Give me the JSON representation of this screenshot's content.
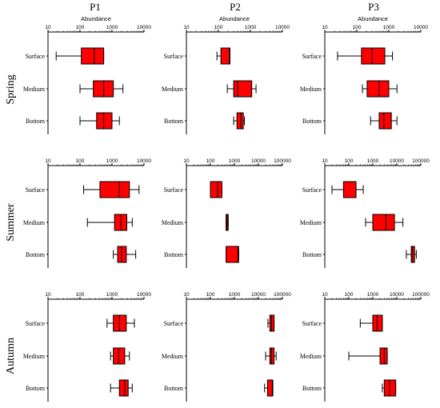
{
  "column_titles": [
    "P1",
    "P2",
    "P3"
  ],
  "row_titles": [
    "Spring",
    "Summer",
    "Autumn"
  ],
  "colors": {
    "box_fill": "#ff0000",
    "box_stroke": "#000000",
    "axis": "#000000"
  },
  "chart_data": [
    {
      "type": "box",
      "row": "Spring",
      "column": "P1",
      "xlabel": "Abundance",
      "xscale": "log",
      "xlim": [
        10,
        10000
      ],
      "xticks": [
        "10",
        "100",
        "1000",
        "10000"
      ],
      "categories": [
        "Surface",
        "Medium",
        "Bottom"
      ],
      "boxes": [
        {
          "min": 18,
          "q1": 110,
          "median": 280,
          "q3": 550,
          "max": 550
        },
        {
          "min": 100,
          "q1": 260,
          "median": 550,
          "q3": 1100,
          "max": 2200
        },
        {
          "min": 100,
          "q1": 330,
          "median": 550,
          "q3": 1000,
          "max": 1700
        }
      ]
    },
    {
      "type": "box",
      "row": "Spring",
      "column": "P2",
      "xlabel": "Abundance",
      "xscale": "log",
      "xlim": [
        10,
        10000
      ],
      "xticks": [
        "10",
        "100",
        "1000",
        "10000"
      ],
      "categories": [
        "Surface",
        "Medium",
        "Bottom"
      ],
      "boxes": [
        {
          "min": 90,
          "q1": 120,
          "median": 220,
          "q3": 230,
          "max": 230
        },
        {
          "min": 190,
          "q1": 300,
          "median": 400,
          "q3": 1100,
          "max": 1500
        },
        {
          "min": 300,
          "q1": 380,
          "median": 500,
          "q3": 600,
          "max": 650
        }
      ]
    },
    {
      "type": "box",
      "row": "Spring",
      "column": "P3",
      "xlabel": "Abundance",
      "xscale": "log",
      "xlim": [
        10,
        10000
      ],
      "xticks": [
        "10",
        "100",
        "1000",
        "10000"
      ],
      "categories": [
        "Surface",
        "Medium",
        "Bottom"
      ],
      "boxes": [
        {
          "min": 25,
          "q1": 140,
          "median": 300,
          "q3": 750,
          "max": 1300
        },
        {
          "min": 150,
          "q1": 210,
          "median": 500,
          "q3": 1000,
          "max": 1800
        },
        {
          "min": 270,
          "q1": 500,
          "median": 700,
          "q3": 1200,
          "max": 1800
        }
      ]
    },
    {
      "type": "box",
      "row": "Summer",
      "column": "P1",
      "xlabel": "",
      "xscale": "log",
      "xlim": [
        10,
        10000
      ],
      "xticks": [
        "10",
        "100",
        "1000",
        "10000"
      ],
      "categories": [
        "Surface",
        "Medium",
        "Bottom"
      ],
      "boxes": [
        {
          "min": 130,
          "q1": 420,
          "median": 1700,
          "q3": 3500,
          "max": 7000
        },
        {
          "min": 170,
          "q1": 1200,
          "median": 1900,
          "q3": 2900,
          "max": 4300
        },
        {
          "min": 1100,
          "q1": 1500,
          "median": 2000,
          "q3": 2800,
          "max": 5500
        }
      ]
    },
    {
      "type": "box",
      "row": "Summer",
      "column": "P2",
      "xlabel": "",
      "xscale": "log",
      "xlim": [
        10,
        100000
      ],
      "xticks": [
        "10",
        "100",
        "1000",
        "10000",
        "100000"
      ],
      "categories": [
        "Surface",
        "Medium",
        "Bottom"
      ],
      "boxes": [
        {
          "min": 100,
          "q1": 100,
          "median": 200,
          "q3": 300,
          "max": 300
        },
        {
          "min": 450,
          "q1": 450,
          "median": 500,
          "q3": 550,
          "max": 550
        },
        {
          "min": 450,
          "q1": 450,
          "median": 1400,
          "q3": 1500,
          "max": 1500
        }
      ]
    },
    {
      "type": "box",
      "row": "Summer",
      "column": "P3",
      "xlabel": "",
      "xscale": "log",
      "xlim": [
        10,
        100000
      ],
      "xticks": [
        "10",
        "100",
        "1000",
        "10000",
        "100000"
      ],
      "categories": [
        "Surface",
        "Medium",
        "Bottom"
      ],
      "boxes": [
        {
          "min": 20,
          "q1": 60,
          "median": 200,
          "q3": 200,
          "max": 400
        },
        {
          "min": 500,
          "q1": 1000,
          "median": 3500,
          "q3": 8000,
          "max": 18000
        },
        {
          "min": 25000,
          "q1": 40000,
          "median": 45000,
          "q3": 55000,
          "max": 65000
        }
      ]
    },
    {
      "type": "box",
      "row": "Autumn",
      "column": "P1",
      "xlabel": "",
      "xscale": "log",
      "xlim": [
        10,
        10000
      ],
      "xticks": [
        "10",
        "100",
        "1000",
        "10000"
      ],
      "categories": [
        "Surface",
        "Medium",
        "Bottom"
      ],
      "boxes": [
        {
          "min": 700,
          "q1": 1100,
          "median": 1700,
          "q3": 2800,
          "max": 5000
        },
        {
          "min": 900,
          "q1": 1100,
          "median": 1600,
          "q3": 2500,
          "max": 3500
        },
        {
          "min": 900,
          "q1": 1700,
          "median": 2500,
          "q3": 3200,
          "max": 4300
        }
      ]
    },
    {
      "type": "box",
      "row": "Autumn",
      "column": "P2",
      "xlabel": "",
      "xscale": "log",
      "xlim": [
        10,
        100000
      ],
      "xticks": [
        "10",
        "100",
        "1000",
        "10000",
        "100000"
      ],
      "categories": [
        "Surface",
        "Medium",
        "Bottom"
      ],
      "boxes": [
        {
          "min": 25000,
          "q1": 30000,
          "median": 35000,
          "q3": 45000,
          "max": 45000
        },
        {
          "min": 20000,
          "q1": 30000,
          "median": 35000,
          "q3": 45000,
          "max": 55000
        },
        {
          "min": 18000,
          "q1": 24000,
          "median": 38000,
          "q3": 40000,
          "max": 40000
        }
      ]
    },
    {
      "type": "box",
      "row": "Autumn",
      "column": "P3",
      "xlabel": "",
      "xscale": "log",
      "xlim": [
        10,
        100000
      ],
      "xticks": [
        "10",
        "100",
        "1000",
        "10000",
        "100000"
      ],
      "categories": [
        "Surface",
        "Medium",
        "Bottom"
      ],
      "boxes": [
        {
          "min": 300,
          "q1": 1000,
          "median": 1500,
          "q3": 2500,
          "max": 2500
        },
        {
          "min": 100,
          "q1": 2000,
          "median": 3000,
          "q3": 4000,
          "max": 4000
        },
        {
          "min": 2500,
          "q1": 3000,
          "median": 5000,
          "q3": 9000,
          "max": 9000
        }
      ]
    }
  ]
}
